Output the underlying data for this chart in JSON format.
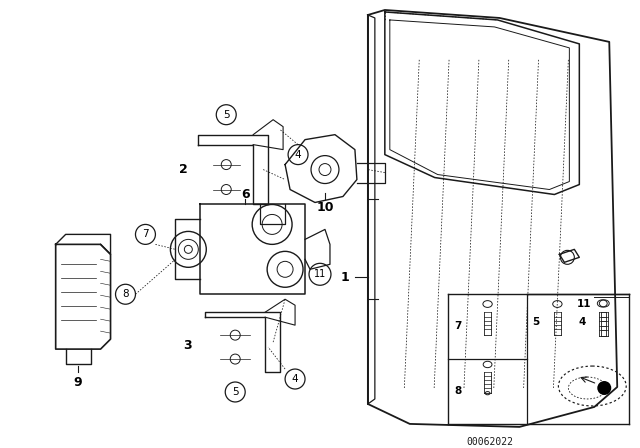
{
  "bg_color": "#ffffff",
  "line_color": "#1a1a1a",
  "diagram_code": "00062022",
  "figsize": [
    6.4,
    4.48
  ],
  "dpi": 100
}
